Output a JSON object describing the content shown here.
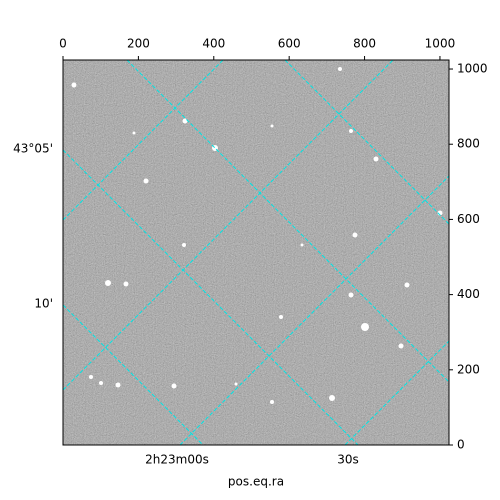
{
  "chart_data": {
    "type": "image",
    "xlabel": "pos.eq.ra",
    "xlim": [
      0,
      1024
    ],
    "xticks": [
      0,
      200,
      400,
      600,
      800,
      1000
    ],
    "ylim": [
      0,
      1024
    ],
    "yticks": [
      0,
      200,
      400,
      600,
      800,
      1000
    ],
    "ra_ticks": [
      "2h23m00s",
      "30s"
    ],
    "dec_ticks": [
      "43°05'",
      "10'"
    ],
    "grid_color": "#00e5e5"
  }
}
